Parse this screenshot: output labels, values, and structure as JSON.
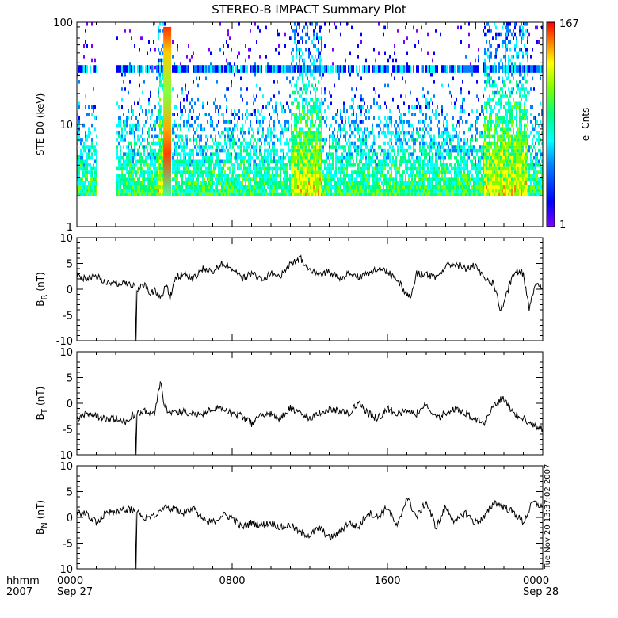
{
  "chart_data": [
    {
      "type": "heatmap",
      "title": "STEREO-B IMPACT Summary Plot",
      "ylabel": "STE D0 (keV)",
      "y_scale": "log",
      "ylim": [
        1,
        100
      ],
      "yticks": [
        "1",
        "10",
        "100"
      ],
      "colorbar": {
        "label": "e- Cnts",
        "min": "1",
        "max": "167",
        "scale": "log",
        "colors": [
          "#8000ff",
          "#0000ff",
          "#0080ff",
          "#00ffff",
          "#00ff80",
          "#80ff00",
          "#ffff00",
          "#ff8000",
          "#ff0000"
        ]
      },
      "xlim_hours": [
        0,
        24
      ],
      "data_gaps_hours": [
        [
          1.0,
          2.0
        ],
        [
          4.6,
          4.85
        ]
      ],
      "energy_floor_keV": 2.0,
      "enhanced_bands_hours": [
        [
          4.1,
          4.6
        ],
        [
          11.0,
          12.6
        ],
        [
          20.9,
          23.2
        ]
      ]
    },
    {
      "type": "line",
      "ylabel": "B",
      "ylabel_sub": "R",
      "ylabel_unit": "(nT)",
      "ylim": [
        -10,
        10
      ],
      "yticks": [
        "-10",
        "-5",
        "0",
        "5",
        "10"
      ],
      "x": [
        0,
        0.5,
        1,
        1.5,
        2,
        2.5,
        3,
        3.05,
        3.1,
        3.5,
        3.8,
        4,
        4.3,
        4.6,
        4.8,
        5,
        5.5,
        6,
        6.5,
        7,
        7.5,
        8,
        8.5,
        9,
        9.5,
        10,
        10.5,
        11,
        11.5,
        12,
        12.5,
        13,
        13.5,
        14,
        14.5,
        15,
        15.5,
        16,
        16.5,
        17,
        17.2,
        17.5,
        18,
        18.5,
        19,
        19.5,
        20,
        20.5,
        21,
        21.5,
        21.8,
        22,
        22.3,
        22.6,
        23,
        23.3,
        23.6,
        24
      ],
      "y": [
        2.5,
        2,
        2.5,
        1.5,
        1,
        1.5,
        0.5,
        -10,
        0,
        1,
        -1,
        0,
        -2,
        1,
        -2,
        2,
        3,
        2,
        4,
        3.5,
        5,
        4,
        2,
        3,
        2,
        3,
        2.5,
        5,
        6,
        4,
        3,
        3.5,
        2,
        3,
        2.5,
        3,
        4,
        3.5,
        2,
        -1,
        -1.5,
        3,
        3,
        2,
        4.5,
        5,
        4,
        4.5,
        2,
        1,
        -4,
        -3,
        1,
        3.5,
        3,
        -3.5,
        1,
        0
      ]
    },
    {
      "type": "line",
      "ylabel": "B",
      "ylabel_sub": "T",
      "ylabel_unit": "(nT)",
      "ylim": [
        -10,
        10
      ],
      "yticks": [
        "-10",
        "-5",
        "0",
        "5",
        "10"
      ],
      "x": [
        0,
        0.5,
        1,
        1.5,
        2,
        2.5,
        3,
        3.05,
        3.1,
        3.5,
        4,
        4.3,
        4.5,
        4.7,
        5,
        5.5,
        6,
        6.5,
        7,
        7.5,
        8,
        8.5,
        9,
        9.5,
        10,
        10.5,
        11,
        11.5,
        12,
        12.5,
        13,
        13.5,
        14,
        14.5,
        15,
        15.5,
        16,
        16.5,
        17,
        17.5,
        18,
        18.5,
        19,
        19.5,
        20,
        20.5,
        21,
        21.5,
        22,
        22.5,
        23,
        23.5,
        24
      ],
      "y": [
        -3,
        -2,
        -2.5,
        -3,
        -3,
        -3.5,
        -2,
        -10,
        -2,
        -1.5,
        -2,
        4,
        0,
        -1.5,
        -2,
        -1.5,
        -2,
        -2,
        -1,
        -1,
        -2,
        -2.5,
        -4,
        -2,
        -2,
        -3,
        -1,
        -2,
        -3,
        -2,
        -1,
        -1.5,
        -2,
        0,
        -2,
        -3,
        -1,
        -2,
        -1.5,
        -2,
        0,
        -3,
        -2,
        -1,
        -2,
        -3,
        -4,
        0,
        1,
        -2,
        -3,
        -4,
        -5
      ]
    },
    {
      "type": "line",
      "ylabel": "B",
      "ylabel_sub": "N",
      "ylabel_unit": "(nT)",
      "ylim": [
        -10,
        10
      ],
      "yticks": [
        "-10",
        "-5",
        "0",
        "5",
        "10"
      ],
      "x": [
        0,
        0.5,
        1,
        1.5,
        2,
        2.5,
        3,
        3.05,
        3.1,
        3.5,
        4,
        4.5,
        5,
        5.5,
        6,
        6.5,
        7,
        7.5,
        8,
        8.5,
        9,
        9.5,
        10,
        10.5,
        11,
        11.5,
        12,
        12.5,
        13,
        13.5,
        14,
        14.5,
        15,
        15.5,
        16,
        16.5,
        17,
        17.5,
        18,
        18.5,
        19,
        19.5,
        20,
        20.5,
        21,
        21.5,
        22,
        22.5,
        23,
        23.5,
        24
      ],
      "y": [
        1,
        0.5,
        -1,
        1,
        1,
        1.5,
        1.5,
        -10,
        1,
        0,
        0.5,
        2,
        1.5,
        1,
        2,
        -0.5,
        -1,
        0.5,
        0,
        -2,
        -1,
        -1.5,
        -1,
        -2,
        -1.5,
        -3,
        -3.5,
        -2,
        -4,
        -3,
        -1,
        -2,
        1,
        0,
        2,
        -2,
        4,
        0,
        3,
        -2,
        2,
        -1,
        1,
        -1,
        0,
        3,
        2,
        1,
        -1,
        3,
        2
      ]
    }
  ],
  "x_axis": {
    "row_label": "hhmm",
    "year_label": "2007",
    "tick_labels": [
      "0000",
      "0800",
      "1600",
      "0000"
    ],
    "date_labels": [
      "Sep 27",
      "Sep 28"
    ]
  },
  "footer_stamp": "Tue Nov 20 13:37:02 2007"
}
